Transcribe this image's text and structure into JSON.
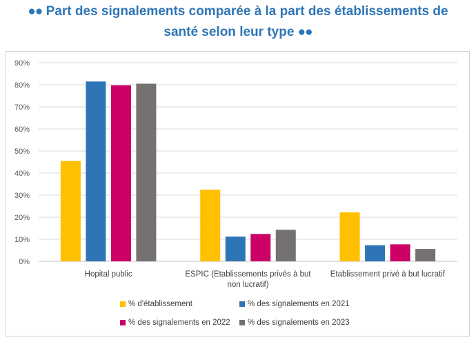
{
  "title": {
    "bullet_left": "●●",
    "line1": "Part des signalements comparée à la part des établissements de",
    "line2": "santé selon leur type",
    "bullet_right": "●●"
  },
  "chart_data": {
    "type": "bar",
    "categories": [
      "Hopital public",
      "ESPIC (Etablissements privés à but non lucratif)",
      "Etablissement privé à but lucratif"
    ],
    "category_label_lines": [
      [
        "Hopital public"
      ],
      [
        "ESPIC (Etablissements privés à but",
        "non lucratif)"
      ],
      [
        "Etablissement privé à but lucratif"
      ]
    ],
    "series": [
      {
        "name": "% d'établissement",
        "color": "#ffc000",
        "values": [
          45.5,
          32.5,
          22.2
        ]
      },
      {
        "name": "% des signalements en 2021",
        "color": "#2e75b6",
        "values": [
          81.5,
          11.2,
          7.3
        ]
      },
      {
        "name": "% des signalements en 2022",
        "color": "#cc0066",
        "values": [
          79.8,
          12.4,
          7.7
        ]
      },
      {
        "name": "% des signalements en 2023",
        "color": "#767171",
        "values": [
          80.5,
          14.3,
          5.6
        ]
      }
    ],
    "ylim": [
      0,
      90
    ],
    "yticks": [
      "0%",
      "10%",
      "20%",
      "30%",
      "40%",
      "50%",
      "60%",
      "70%",
      "80%",
      "90%"
    ],
    "grid": true,
    "legend_position": "bottom"
  }
}
